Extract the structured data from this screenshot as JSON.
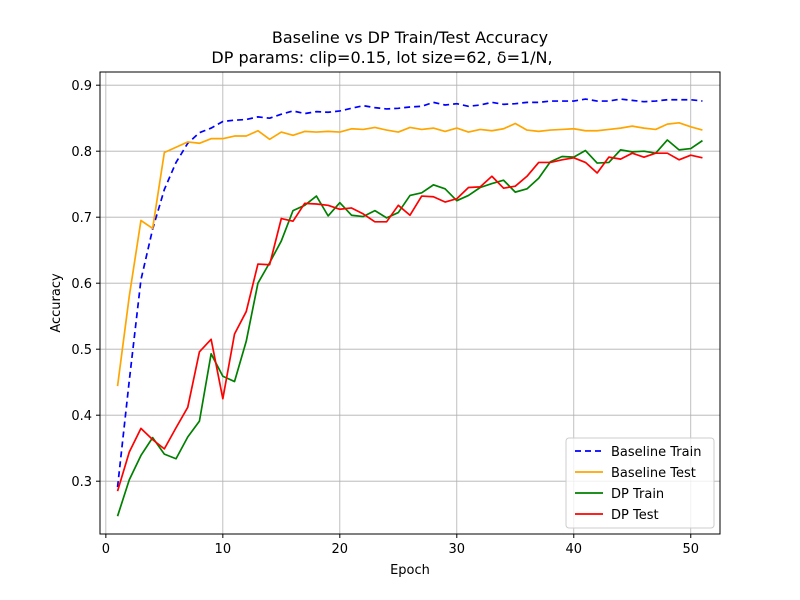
{
  "chart_data": {
    "type": "line",
    "title_line1": "Baseline vs DP Train/Test Accuracy",
    "title_line2": "DP params: clip=0.15, lot size=62, δ=1/N,",
    "xlabel": "Epoch",
    "ylabel": "Accuracy",
    "xlim": [
      -0.5,
      52.5
    ],
    "ylim": [
      0.22,
      0.92
    ],
    "xticks": [
      0,
      10,
      20,
      30,
      40,
      50
    ],
    "yticks": [
      0.3,
      0.4,
      0.5,
      0.6,
      0.7,
      0.8,
      0.9
    ],
    "ytick_labels": [
      "0.3",
      "0.4",
      "0.5",
      "0.6",
      "0.7",
      "0.8",
      "0.9"
    ],
    "grid": true,
    "legend_position": "lower-right",
    "x": [
      1,
      2,
      3,
      4,
      5,
      6,
      7,
      8,
      9,
      10,
      11,
      12,
      13,
      14,
      15,
      16,
      17,
      18,
      19,
      20,
      21,
      22,
      23,
      24,
      25,
      26,
      27,
      28,
      29,
      30,
      31,
      32,
      33,
      34,
      35,
      36,
      37,
      38,
      39,
      40,
      41,
      42,
      43,
      44,
      45,
      46,
      47,
      48,
      49,
      50,
      51
    ],
    "series": [
      {
        "name": "Baseline Train",
        "color": "#0000ff",
        "dash": "6,4",
        "values": [
          0.291,
          0.452,
          0.605,
          0.682,
          0.742,
          0.783,
          0.812,
          0.828,
          0.835,
          0.845,
          0.847,
          0.848,
          0.852,
          0.85,
          0.856,
          0.861,
          0.857,
          0.86,
          0.859,
          0.861,
          0.865,
          0.869,
          0.866,
          0.864,
          0.865,
          0.867,
          0.868,
          0.874,
          0.87,
          0.872,
          0.868,
          0.87,
          0.874,
          0.871,
          0.872,
          0.874,
          0.874,
          0.876,
          0.876,
          0.876,
          0.879,
          0.876,
          0.876,
          0.879,
          0.877,
          0.875,
          0.876,
          0.878,
          0.878,
          0.878,
          0.876
        ]
      },
      {
        "name": "Baseline Test",
        "color": "#ffa500",
        "dash": "",
        "values": [
          0.444,
          0.58,
          0.695,
          0.683,
          0.798,
          0.806,
          0.814,
          0.812,
          0.819,
          0.819,
          0.823,
          0.823,
          0.831,
          0.818,
          0.829,
          0.824,
          0.83,
          0.829,
          0.83,
          0.829,
          0.834,
          0.833,
          0.836,
          0.832,
          0.829,
          0.836,
          0.833,
          0.835,
          0.83,
          0.835,
          0.829,
          0.833,
          0.831,
          0.834,
          0.842,
          0.832,
          0.83,
          0.832,
          0.833,
          0.834,
          0.831,
          0.831,
          0.833,
          0.835,
          0.838,
          0.835,
          0.833,
          0.841,
          0.843,
          0.837,
          0.832
        ]
      },
      {
        "name": "DP Train",
        "color": "#008000",
        "dash": "",
        "values": [
          0.247,
          0.302,
          0.339,
          0.366,
          0.341,
          0.334,
          0.367,
          0.391,
          0.493,
          0.459,
          0.451,
          0.512,
          0.6,
          0.631,
          0.664,
          0.71,
          0.718,
          0.732,
          0.702,
          0.722,
          0.703,
          0.701,
          0.71,
          0.699,
          0.707,
          0.733,
          0.737,
          0.749,
          0.743,
          0.725,
          0.733,
          0.745,
          0.751,
          0.756,
          0.738,
          0.743,
          0.759,
          0.784,
          0.792,
          0.791,
          0.801,
          0.782,
          0.783,
          0.802,
          0.799,
          0.8,
          0.797,
          0.817,
          0.802,
          0.804,
          0.816
        ]
      },
      {
        "name": "DP Test",
        "color": "#ff0000",
        "dash": "",
        "values": [
          0.285,
          0.344,
          0.38,
          0.363,
          0.349,
          0.381,
          0.412,
          0.496,
          0.515,
          0.425,
          0.523,
          0.557,
          0.629,
          0.628,
          0.698,
          0.694,
          0.721,
          0.72,
          0.718,
          0.712,
          0.714,
          0.705,
          0.693,
          0.693,
          0.718,
          0.703,
          0.732,
          0.731,
          0.723,
          0.728,
          0.745,
          0.746,
          0.762,
          0.744,
          0.747,
          0.762,
          0.783,
          0.783,
          0.787,
          0.79,
          0.783,
          0.767,
          0.791,
          0.788,
          0.797,
          0.791,
          0.797,
          0.797,
          0.787,
          0.794,
          0.79
        ]
      }
    ]
  }
}
